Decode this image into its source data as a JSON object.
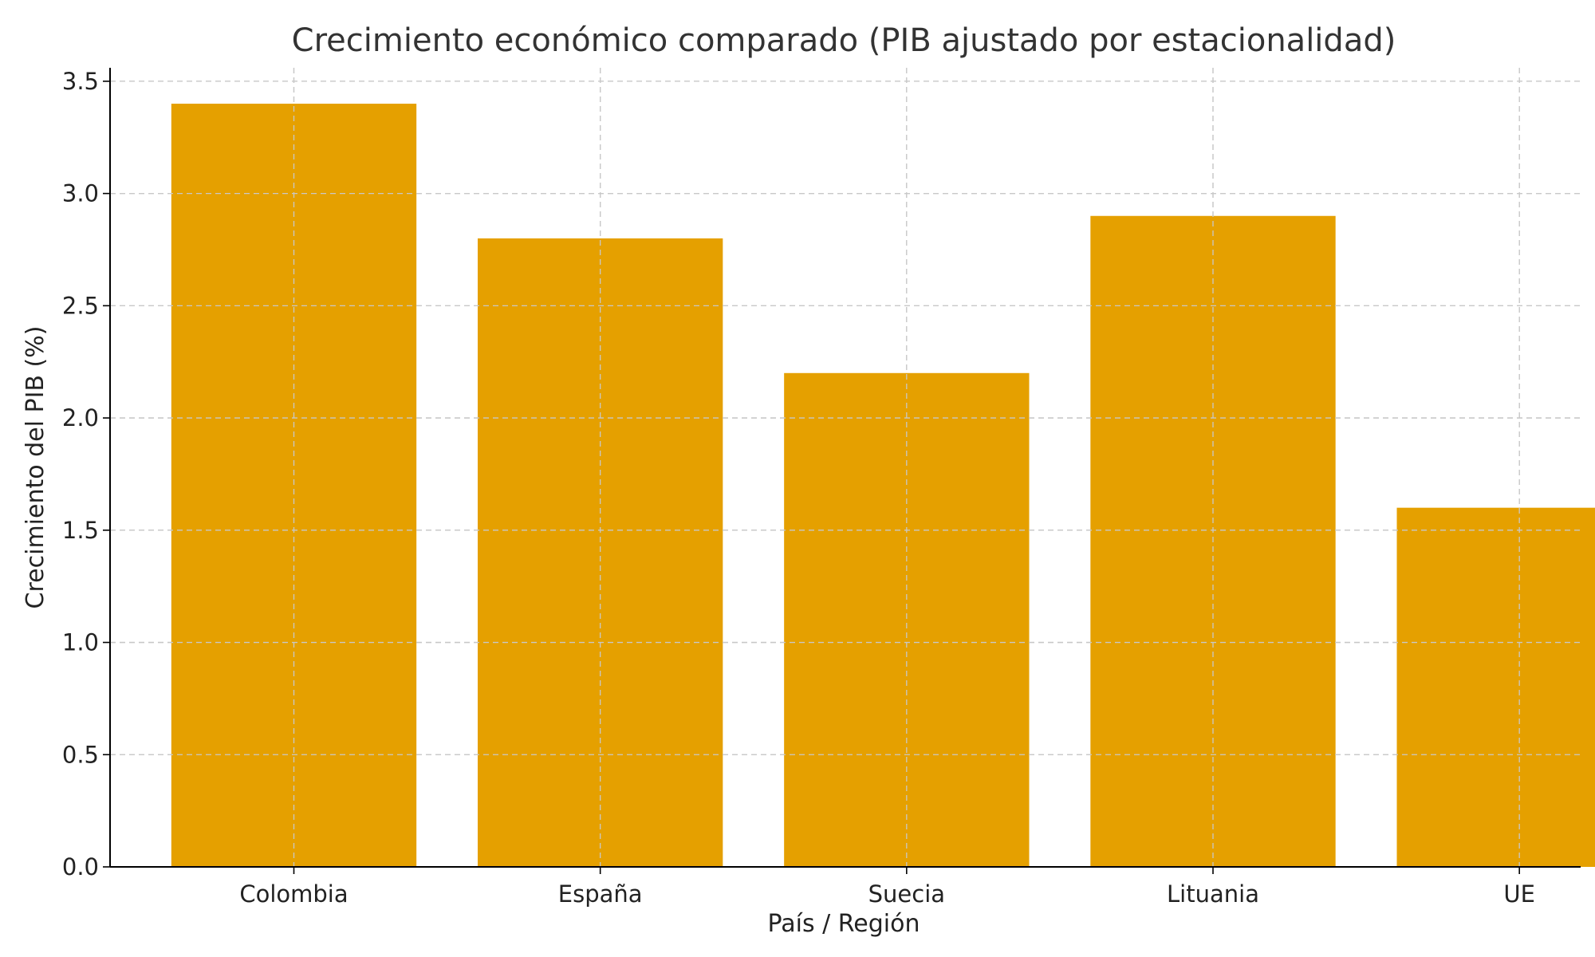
{
  "chart_data": {
    "type": "bar",
    "title": "Crecimiento económico comparado (PIB ajustado por estacionalidad)",
    "xlabel": "País / Región",
    "ylabel": "Crecimiento del PIB (%)",
    "categories": [
      "Colombia",
      "España",
      "Suecia",
      "Lituania",
      "UE"
    ],
    "values": [
      3.4,
      2.8,
      2.2,
      2.9,
      1.6
    ],
    "ylim": [
      0,
      3.56
    ],
    "yticks": [
      "0.0",
      "0.5",
      "1.0",
      "1.5",
      "2.0",
      "2.5",
      "3.0",
      "3.5"
    ],
    "grid": true,
    "colors": {
      "bar": "#E5A000"
    }
  }
}
